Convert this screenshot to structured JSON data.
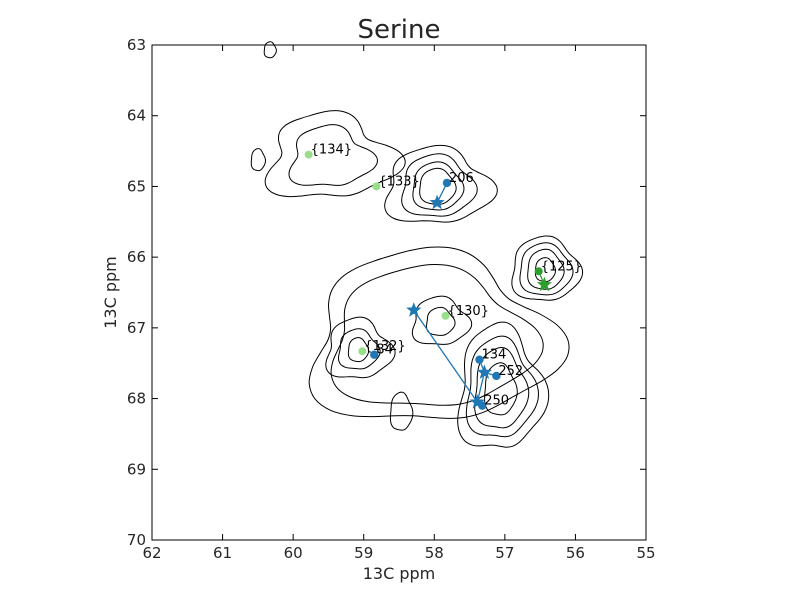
{
  "chart_data": {
    "type": "scatter",
    "title": "Serine",
    "xlabel": "13C ppm",
    "ylabel": "13C ppm",
    "xlim": [
      62,
      55
    ],
    "ylim": [
      63,
      70
    ],
    "x_ticks": [
      62,
      61,
      60,
      59,
      58,
      57,
      56,
      55
    ],
    "y_ticks": [
      63,
      64,
      65,
      66,
      67,
      68,
      69,
      70
    ],
    "grid": false,
    "legend": "none",
    "colors": {
      "blue": "#1f77b4",
      "dark_green": "#2ca02c",
      "light_green": "#98df8a",
      "contour": "#000000"
    },
    "peaks": [
      {
        "label": "{134}",
        "x": 59.78,
        "y": 64.55,
        "color": "light_green"
      },
      {
        "label": "{133}",
        "x": 58.82,
        "y": 65.0,
        "color": "light_green"
      },
      {
        "label": "{130}",
        "x": 57.84,
        "y": 66.83,
        "color": "light_green"
      },
      {
        "label": "{132}",
        "x": 59.02,
        "y": 67.33,
        "color": "light_green"
      },
      {
        "label": "{125}",
        "x": 56.52,
        "y": 66.2,
        "color": "dark_green"
      }
    ],
    "assigned_points": [
      {
        "label": "206",
        "x": 57.82,
        "y": 64.95,
        "color": "blue"
      },
      {
        "label": "84",
        "x": 58.85,
        "y": 67.38,
        "color": "blue"
      },
      {
        "label": "134",
        "x": 57.36,
        "y": 67.45,
        "color": "blue"
      },
      {
        "label": "252",
        "x": 57.12,
        "y": 67.68,
        "color": "blue"
      },
      {
        "label": "250",
        "x": 57.32,
        "y": 68.1,
        "color": "blue"
      }
    ],
    "stars": [
      {
        "x": 57.96,
        "y": 65.23,
        "color": "blue"
      },
      {
        "x": 58.29,
        "y": 66.75,
        "color": "blue"
      },
      {
        "x": 57.29,
        "y": 67.63,
        "color": "blue"
      },
      {
        "x": 57.39,
        "y": 68.05,
        "color": "blue"
      },
      {
        "x": 56.44,
        "y": 66.39,
        "color": "dark_green"
      }
    ],
    "lines": [
      {
        "x": [
          57.96,
          57.82
        ],
        "y": [
          65.23,
          64.95
        ],
        "color": "blue"
      },
      {
        "x": [
          58.29,
          57.39
        ],
        "y": [
          66.75,
          68.05
        ],
        "color": "blue"
      },
      {
        "x": [
          57.39,
          57.32
        ],
        "y": [
          68.05,
          68.1
        ],
        "color": "blue"
      },
      {
        "x": [
          57.29,
          57.36
        ],
        "y": [
          67.63,
          67.45
        ],
        "color": "blue"
      },
      {
        "x": [
          57.29,
          57.12
        ],
        "y": [
          67.63,
          67.68
        ],
        "color": "blue"
      },
      {
        "x": [
          57.39,
          57.29
        ],
        "y": [
          68.05,
          67.63
        ],
        "color": "blue"
      },
      {
        "x": [
          56.44,
          56.52
        ],
        "y": [
          66.39,
          66.2
        ],
        "color": "dark_green"
      }
    ]
  }
}
